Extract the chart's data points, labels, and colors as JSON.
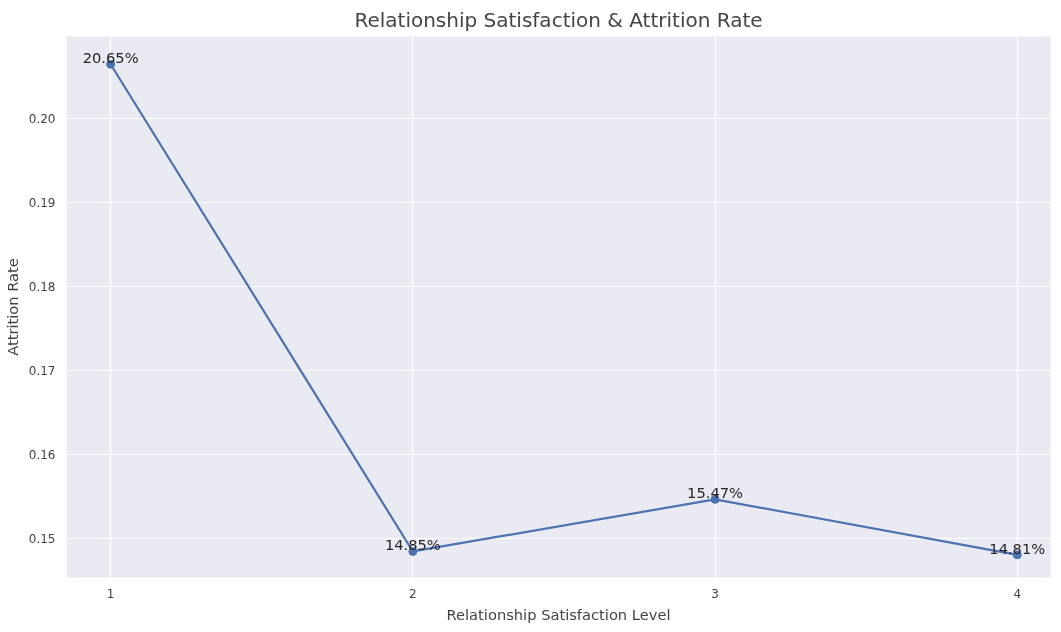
{
  "chart_data": {
    "type": "line",
    "title": "Relationship Satisfaction & Attrition Rate",
    "xlabel": "Relationship Satisfaction Level",
    "ylabel": "Attrition Rate",
    "x": [
      1,
      2,
      3,
      4
    ],
    "series": [
      {
        "color": "#4c72b0",
        "values": [
          0.2065,
          0.1485,
          0.1547,
          0.1481
        ]
      }
    ],
    "value_labels": [
      "20.65%",
      "14.85%",
      "15.47%",
      "14.81%"
    ],
    "xlim": [
      0.854,
      4.11
    ],
    "xticks": [
      1,
      2,
      3,
      4
    ],
    "ylim": [
      0.1454,
      0.2098
    ],
    "yticks": [
      0.15,
      0.16,
      0.17,
      0.18,
      0.19,
      {
        "value": 0.2,
        "label": "0.20"
      }
    ],
    "grid": true,
    "marker": "circle",
    "line_style": "solid"
  }
}
